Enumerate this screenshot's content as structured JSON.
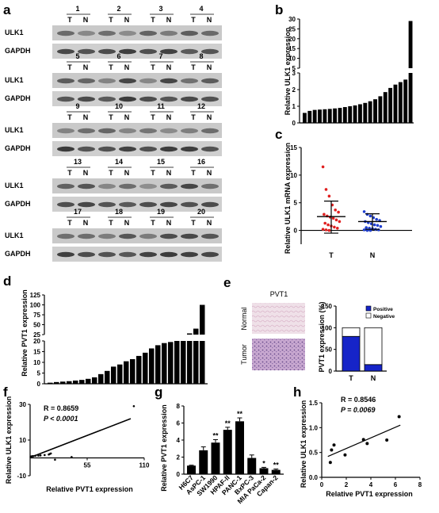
{
  "panels": {
    "a": {
      "letter": "a",
      "rows": [
        {
          "numbers": [
            "1",
            "2",
            "3",
            "4"
          ],
          "t": "T",
          "n": "N"
        },
        {
          "numbers": [
            "5",
            "6",
            "7",
            "8"
          ],
          "t": "T",
          "n": "N"
        },
        {
          "numbers": [
            "9",
            "10",
            "11",
            "12"
          ],
          "t": "T",
          "n": "N"
        },
        {
          "numbers": [
            "13",
            "14",
            "15",
            "16"
          ],
          "t": "T",
          "n": "N"
        },
        {
          "numbers": [
            "17",
            "18",
            "19",
            "20"
          ],
          "t": "T",
          "n": "N"
        }
      ],
      "blot_labels": {
        "top": "ULK1",
        "bottom": "GAPDH"
      }
    },
    "b": {
      "letter": "b"
    },
    "c": {
      "letter": "c"
    },
    "d": {
      "letter": "d"
    },
    "e": {
      "letter": "e",
      "ihc_title": "PVT1",
      "row_labels": [
        "Normal",
        "Tumor"
      ]
    },
    "f": {
      "letter": "f",
      "stats": {
        "r": "R = 0.8659",
        "p": "P < 0.0001"
      }
    },
    "g": {
      "letter": "g"
    },
    "h": {
      "letter": "h",
      "stats": {
        "r": "R = 0.8546",
        "p": "P = 0.0069"
      }
    }
  },
  "chart_data": [
    {
      "id": "b",
      "type": "bar",
      "title": "",
      "ylabel": "Relative ULK1 expression",
      "broken_axis": {
        "lower_ticks": [
          "0",
          "1",
          "2",
          "3"
        ],
        "upper_ticks": [
          "5",
          "10",
          "15",
          "20",
          "25",
          "30"
        ]
      },
      "values": [
        0.6,
        0.72,
        0.78,
        0.8,
        0.82,
        0.84,
        0.87,
        0.9,
        0.95,
        1.0,
        1.05,
        1.12,
        1.2,
        1.3,
        1.42,
        1.6,
        1.85,
        2.1,
        2.3,
        2.45,
        2.6,
        29
      ]
    },
    {
      "id": "c",
      "type": "scatter",
      "ylabel": "Relative ULK1 mRNA expression",
      "categories": [
        "T",
        "N"
      ],
      "y_ticks": [
        "0",
        "5",
        "10",
        "15"
      ],
      "ylim": [
        -2.5,
        15
      ],
      "series": [
        {
          "name": "T",
          "color": "#e02020",
          "points": [
            11.5,
            7.4,
            6.2,
            4.6,
            3.7,
            3.3,
            2.9,
            2.6,
            2.4,
            2.2,
            1.9,
            1.6,
            1.3,
            1.0,
            0.8,
            0.6,
            0.4,
            0.2,
            0.1,
            0.0
          ],
          "mean": 2.5,
          "sd_low": -0.5,
          "sd_high": 5.3
        },
        {
          "name": "N",
          "color": "#1f3fd0",
          "points": [
            3.4,
            2.9,
            2.6,
            2.3,
            2.0,
            1.8,
            1.6,
            1.4,
            1.2,
            1.0,
            0.9,
            0.7,
            0.5,
            0.4,
            0.3,
            0.2,
            0.1,
            0.1,
            0.0,
            0.0
          ],
          "mean": 1.6,
          "sd_low": 0.2,
          "sd_high": 3.0
        }
      ]
    },
    {
      "id": "d",
      "type": "bar",
      "ylabel": "Relative PVT1 expression",
      "broken_axis": {
        "lower_ticks": [
          "0",
          "5",
          "10",
          "15",
          "20"
        ],
        "upper_ticks": [
          "25",
          "50",
          "75",
          "100",
          "125"
        ]
      },
      "values": [
        0.5,
        0.8,
        1.0,
        1.2,
        1.5,
        1.8,
        2.3,
        3.0,
        4.5,
        6.0,
        8.0,
        9.0,
        10.5,
        11.5,
        13.0,
        14.5,
        16.5,
        18.0,
        19.0,
        19.5,
        20.0,
        20.3,
        28,
        40,
        100
      ]
    },
    {
      "id": "e",
      "type": "bar",
      "stacked": true,
      "ylabel": "PVT1 expression (%)",
      "categories": [
        "T",
        "N"
      ],
      "y_ticks": [
        "0",
        "50",
        "100",
        "150"
      ],
      "ylim": [
        0,
        150
      ],
      "series": [
        {
          "name": "Positive",
          "color": "#1624c8",
          "values": [
            80,
            15
          ]
        },
        {
          "name": "Negative",
          "color": "#ffffff",
          "values": [
            20,
            85
          ]
        }
      ]
    },
    {
      "id": "f",
      "type": "scatter",
      "ylabel": "Relative ULK1 expression",
      "xlabel": "Relative PVT1 expression",
      "x_ticks": [
        "55",
        "110"
      ],
      "y_ticks": [
        "30",
        "10",
        "-10"
      ],
      "xlim": [
        0,
        110
      ],
      "ylim": [
        -10,
        30
      ],
      "points": [
        [
          0.5,
          0.6
        ],
        [
          0.8,
          0.7
        ],
        [
          1,
          0.8
        ],
        [
          2,
          0.9
        ],
        [
          3,
          1.0
        ],
        [
          5,
          1.2
        ],
        [
          8,
          1.3
        ],
        [
          10,
          1.4
        ],
        [
          14,
          1.6
        ],
        [
          18,
          1.9
        ],
        [
          19,
          2.2
        ],
        [
          20,
          2.5
        ],
        [
          24,
          -1.0
        ],
        [
          40,
          0.5
        ],
        [
          100,
          29
        ]
      ],
      "fit": [
        [
          0,
          0.2
        ],
        [
          97,
          22
        ]
      ]
    },
    {
      "id": "g",
      "type": "bar",
      "ylabel": "Relative PVT1 expression",
      "categories": [
        "H6C7",
        "AsPC-1",
        "SW1990",
        "HPAF-II",
        "PANC-1",
        "BxPC-3",
        "MIA PaCa-2",
        "Capan-2"
      ],
      "values": [
        1.0,
        2.8,
        3.7,
        5.2,
        6.2,
        1.9,
        0.7,
        0.5
      ],
      "errors": [
        0.05,
        0.4,
        0.35,
        0.3,
        0.4,
        0.35,
        0.1,
        0.1
      ],
      "significance": [
        "",
        "",
        "**",
        "**",
        "**",
        "",
        "*",
        "**"
      ],
      "y_ticks": [
        "0",
        "2",
        "4",
        "6",
        "8"
      ],
      "ylim": [
        0,
        8
      ]
    },
    {
      "id": "h",
      "type": "scatter",
      "ylabel": "Relative ULK1 expression",
      "xlabel": "Relative PVT1 expression",
      "x_ticks": [
        "0",
        "2",
        "4",
        "6",
        "8"
      ],
      "y_ticks": [
        "0.0",
        "0.5",
        "1.0",
        "1.5"
      ],
      "xlim": [
        0,
        8
      ],
      "ylim": [
        0,
        1.5
      ],
      "points": [
        [
          0.7,
          0.3
        ],
        [
          0.8,
          0.55
        ],
        [
          1.0,
          0.65
        ],
        [
          1.9,
          0.45
        ],
        [
          3.4,
          0.76
        ],
        [
          3.7,
          0.68
        ],
        [
          5.3,
          0.75
        ],
        [
          6.3,
          1.22
        ]
      ],
      "fit": [
        [
          0.5,
          0.42
        ],
        [
          6.4,
          1.05
        ]
      ]
    }
  ]
}
